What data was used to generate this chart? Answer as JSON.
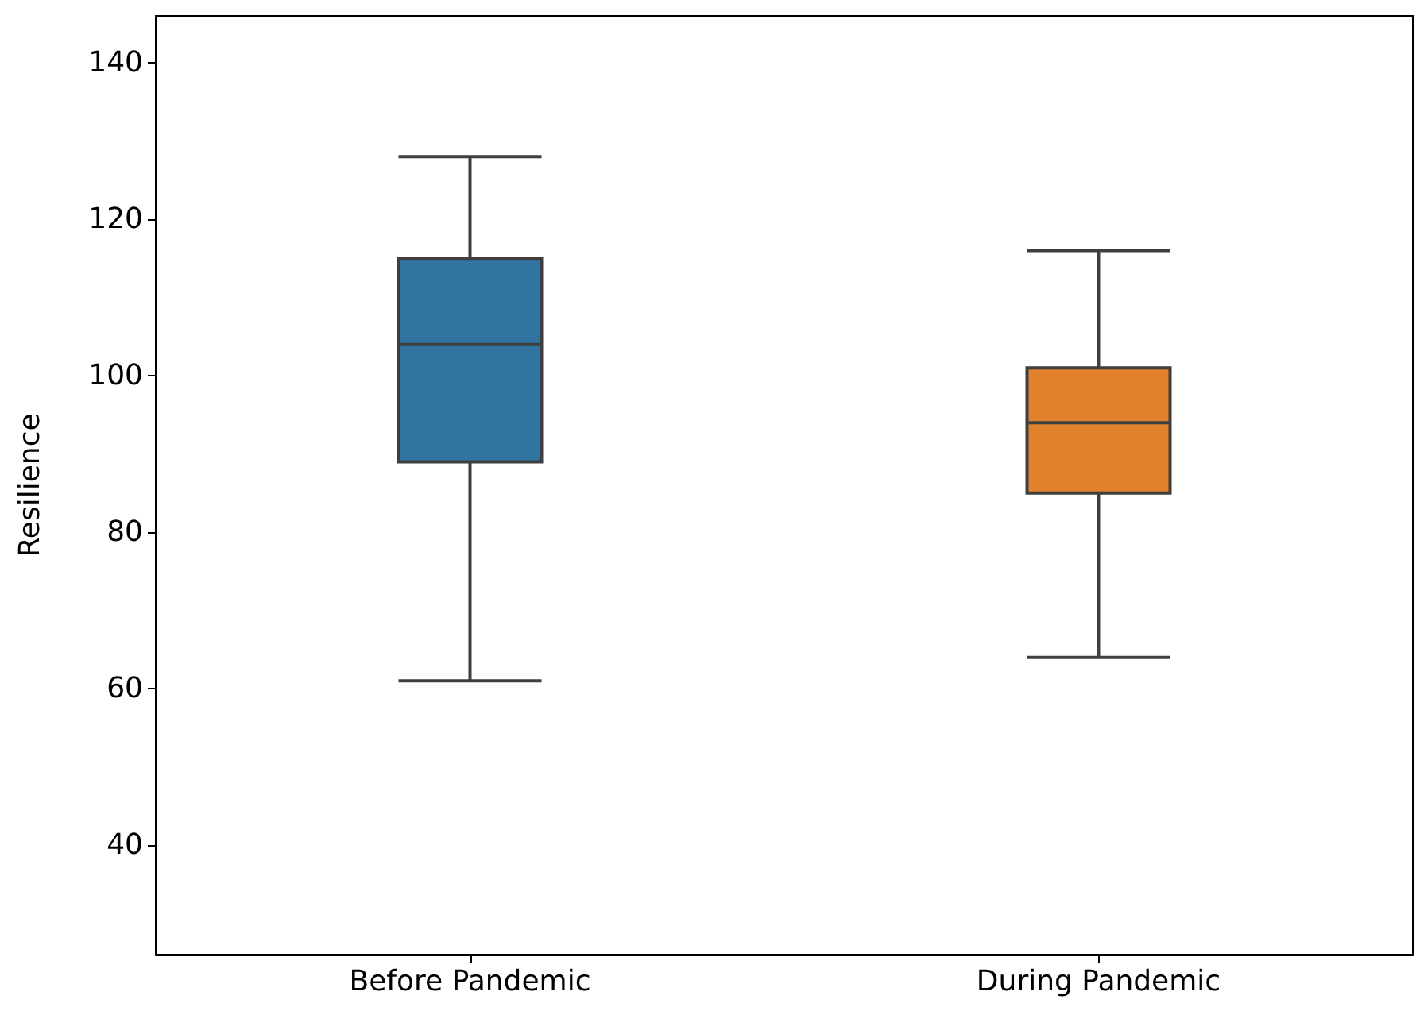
{
  "chart_data": {
    "type": "box",
    "ylabel": "Resilience",
    "categories": [
      "Before Pandemic",
      "During Pandemic"
    ],
    "boxes": [
      {
        "low": 61,
        "q1": 89,
        "median": 104,
        "q3": 115,
        "high": 128
      },
      {
        "low": 64,
        "q1": 85,
        "median": 94,
        "q3": 101,
        "high": 116
      }
    ],
    "colors": [
      "#3274a1",
      "#e1812c"
    ],
    "ylim": [
      26,
      146
    ],
    "yticks": [
      40,
      60,
      80,
      100,
      120,
      140
    ],
    "grid": false
  }
}
